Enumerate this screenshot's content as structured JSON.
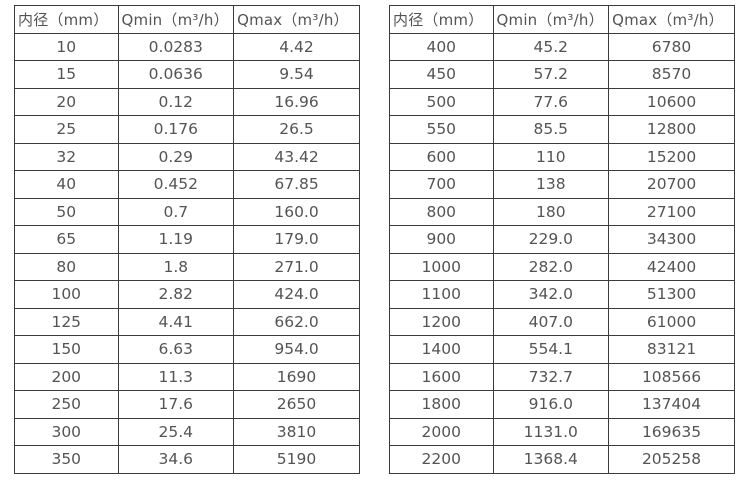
{
  "page": {
    "background_color": "#ffffff",
    "border_color": "#3b3b3b",
    "text_color": "#545454"
  },
  "tables": [
    {
      "name": "flow-rate-table-small-diameters",
      "headers": [
        "内径（mm）",
        "Qmin（m³/h）",
        "Qmax（m³/h）"
      ],
      "rows": [
        [
          "10",
          "0.0283",
          "4.42"
        ],
        [
          "15",
          "0.0636",
          "9.54"
        ],
        [
          "20",
          "0.12",
          "16.96"
        ],
        [
          "25",
          "0.176",
          "26.5"
        ],
        [
          "32",
          "0.29",
          "43.42"
        ],
        [
          "40",
          "0.452",
          "67.85"
        ],
        [
          "50",
          "0.7",
          "160.0"
        ],
        [
          "65",
          "1.19",
          "179.0"
        ],
        [
          "80",
          "1.8",
          "271.0"
        ],
        [
          "100",
          "2.82",
          "424.0"
        ],
        [
          "125",
          "4.41",
          "662.0"
        ],
        [
          "150",
          "6.63",
          "954.0"
        ],
        [
          "200",
          "11.3",
          "1690"
        ],
        [
          "250",
          "17.6",
          "2650"
        ],
        [
          "300",
          "25.4",
          "3810"
        ],
        [
          "350",
          "34.6",
          "5190"
        ]
      ]
    },
    {
      "name": "flow-rate-table-large-diameters",
      "headers": [
        "内径（mm）",
        "Qmin（m³/h）",
        "Qmax（m³/h）"
      ],
      "rows": [
        [
          "400",
          "45.2",
          "6780"
        ],
        [
          "450",
          "57.2",
          "8570"
        ],
        [
          "500",
          "77.6",
          "10600"
        ],
        [
          "550",
          "85.5",
          "12800"
        ],
        [
          "600",
          "110",
          "15200"
        ],
        [
          "700",
          "138",
          "20700"
        ],
        [
          "800",
          "180",
          "27100"
        ],
        [
          "900",
          "229.0",
          "34300"
        ],
        [
          "1000",
          "282.0",
          "42400"
        ],
        [
          "1100",
          "342.0",
          "51300"
        ],
        [
          "1200",
          "407.0",
          "61000"
        ],
        [
          "1400",
          "554.1",
          "83121"
        ],
        [
          "1600",
          "732.7",
          "108566"
        ],
        [
          "1800",
          "916.0",
          "137404"
        ],
        [
          "2000",
          "1131.0",
          "169635"
        ],
        [
          "2200",
          "1368.4",
          "205258"
        ]
      ]
    }
  ],
  "chart_data": {
    "type": "table",
    "title": "",
    "columns": [
      "内径（mm）",
      "Qmin（m³/h）",
      "Qmax（m³/h）"
    ],
    "tables": [
      {
        "diameters_mm": [
          10,
          15,
          20,
          25,
          32,
          40,
          50,
          65,
          80,
          100,
          125,
          150,
          200,
          250,
          300,
          350
        ],
        "qmin_m3h": [
          0.0283,
          0.0636,
          0.12,
          0.176,
          0.29,
          0.452,
          0.7,
          1.19,
          1.8,
          2.82,
          4.41,
          6.63,
          11.3,
          17.6,
          25.4,
          34.6
        ],
        "qmax_m3h": [
          4.42,
          9.54,
          16.96,
          26.5,
          43.42,
          67.85,
          160.0,
          179.0,
          271.0,
          424.0,
          662.0,
          954.0,
          1690,
          2650,
          3810,
          5190
        ]
      },
      {
        "diameters_mm": [
          400,
          450,
          500,
          550,
          600,
          700,
          800,
          900,
          1000,
          1100,
          1200,
          1400,
          1600,
          1800,
          2000,
          2200
        ],
        "qmin_m3h": [
          45.2,
          57.2,
          77.6,
          85.5,
          110,
          138,
          180,
          229.0,
          282.0,
          342.0,
          407.0,
          554.1,
          732.7,
          916.0,
          1131.0,
          1368.4
        ],
        "qmax_m3h": [
          6780,
          8570,
          10600,
          12800,
          15200,
          20700,
          27100,
          34300,
          42400,
          51300,
          61000,
          83121,
          108566,
          137404,
          169635,
          205258
        ]
      }
    ]
  }
}
